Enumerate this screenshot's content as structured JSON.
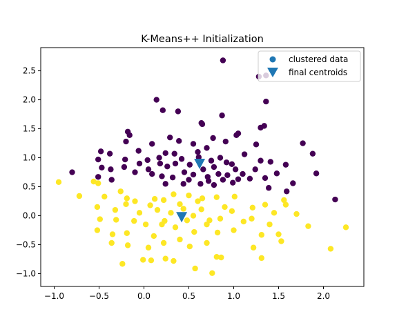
{
  "chart_data": {
    "type": "scatter",
    "title": "K-Means++ Initialization",
    "xlabel": "",
    "ylabel": "",
    "xlim": [
      -1.15,
      2.45
    ],
    "ylim": [
      -1.22,
      2.9
    ],
    "xticks": [
      -1.0,
      -0.5,
      0.0,
      0.5,
      1.0,
      1.5,
      2.0
    ],
    "xtick_labels": [
      "−1.0",
      "−0.5",
      "0.0",
      "0.5",
      "1.0",
      "1.5",
      "2.0"
    ],
    "yticks": [
      -1.0,
      -0.5,
      0.0,
      0.5,
      1.0,
      1.5,
      2.0,
      2.5
    ],
    "ytick_labels": [
      "−1.0",
      "−0.5",
      "0.0",
      "0.5",
      "1.0",
      "1.5",
      "2.0",
      "2.5"
    ],
    "grid": false,
    "legend_position": "top-right",
    "legend": [
      {
        "label": "clustered data",
        "marker": "circle",
        "color": "#1f77b4"
      },
      {
        "label": "final centroids",
        "marker": "triangle-down",
        "color": "#1f77b4"
      }
    ],
    "clusters": [
      {
        "color": "#440154",
        "points": [
          [
            0.88,
            2.68
          ],
          [
            1.28,
            2.4
          ],
          [
            1.36,
            2.42
          ],
          [
            0.14,
            2.0
          ],
          [
            1.36,
            1.97
          ],
          [
            0.21,
            1.82
          ],
          [
            0.38,
            1.8
          ],
          [
            -0.18,
            1.45
          ],
          [
            0.87,
            1.73
          ],
          [
            1.3,
            1.52
          ],
          [
            -0.16,
            1.39
          ],
          [
            0.64,
            1.6
          ],
          [
            0.65,
            1.58
          ],
          [
            -0.2,
            1.28
          ],
          [
            1.34,
            1.55
          ],
          [
            0.09,
            1.24
          ],
          [
            0.29,
            1.35
          ],
          [
            0.39,
            1.29
          ],
          [
            0.55,
            1.24
          ],
          [
            0.77,
            1.34
          ],
          [
            1.03,
            1.39
          ],
          [
            1.05,
            1.42
          ],
          [
            1.77,
            1.25
          ],
          [
            -0.48,
            1.11
          ],
          [
            -0.06,
            1.12
          ],
          [
            0.24,
            1.08
          ],
          [
            0.34,
            1.07
          ],
          [
            0.7,
            1.17
          ],
          [
            0.91,
            1.28
          ],
          [
            1.25,
            1.23
          ],
          [
            -0.8,
            0.75
          ],
          [
            -0.51,
            0.97
          ],
          [
            -0.38,
            1.07
          ],
          [
            -0.21,
            0.97
          ],
          [
            0.04,
            0.96
          ],
          [
            0.17,
            1.0
          ],
          [
            0.42,
            0.98
          ],
          [
            0.61,
            1.01
          ],
          [
            1.12,
            1.06
          ],
          [
            1.58,
            0.88
          ],
          [
            1.88,
            1.07
          ],
          [
            -0.47,
            0.83
          ],
          [
            -0.37,
            0.8
          ],
          [
            -0.22,
            0.84
          ],
          [
            0.05,
            0.8
          ],
          [
            0.26,
            0.85
          ],
          [
            0.51,
            0.88
          ],
          [
            0.78,
            0.84
          ],
          [
            0.98,
            0.89
          ],
          [
            1.24,
            0.8
          ],
          [
            1.41,
            0.93
          ],
          [
            1.92,
            0.73
          ],
          [
            -0.51,
            0.67
          ],
          [
            -0.36,
            0.62
          ],
          [
            0.09,
            0.72
          ],
          [
            0.32,
            0.66
          ],
          [
            0.55,
            0.71
          ],
          [
            0.71,
            0.67
          ],
          [
            0.93,
            0.7
          ],
          [
            1.18,
            0.64
          ],
          [
            1.48,
            0.73
          ],
          [
            0.24,
            0.55
          ],
          [
            0.44,
            0.55
          ],
          [
            0.63,
            0.55
          ],
          [
            0.78,
            0.53
          ],
          [
            0.99,
            0.57
          ],
          [
            1.39,
            0.48
          ],
          [
            1.66,
            0.56
          ],
          [
            2.13,
            0.28
          ],
          [
            1.59,
            0.42
          ],
          [
            0.6,
            1.1
          ],
          [
            0.75,
            0.95
          ],
          [
            0.85,
            1.0
          ],
          [
            0.92,
            0.92
          ],
          [
            1.02,
            0.8
          ],
          [
            0.45,
            0.75
          ],
          [
            0.35,
            0.9
          ],
          [
            0.18,
            0.9
          ],
          [
            -0.05,
            0.9
          ],
          [
            0.66,
            0.8
          ],
          [
            0.83,
            0.72
          ],
          [
            1.1,
            0.72
          ],
          [
            1.3,
            0.95
          ],
          [
            1.35,
            0.65
          ],
          [
            0.5,
            0.62
          ],
          [
            0.2,
            0.68
          ],
          [
            -0.1,
            0.75
          ],
          [
            0.72,
            0.6
          ],
          [
            0.88,
            0.62
          ],
          [
            1.05,
            0.63
          ]
        ]
      },
      {
        "color": "#fde725",
        "points": [
          [
            -0.95,
            0.58
          ],
          [
            -0.56,
            0.59
          ],
          [
            -0.51,
            0.56
          ],
          [
            -0.72,
            0.34
          ],
          [
            -0.26,
            0.42
          ],
          [
            -0.44,
            0.33
          ],
          [
            -0.19,
            0.3
          ],
          [
            -0.1,
            0.25
          ],
          [
            0.12,
            0.29
          ],
          [
            0.22,
            0.27
          ],
          [
            0.33,
            0.37
          ],
          [
            0.5,
            0.35
          ],
          [
            0.81,
            0.32
          ],
          [
            1.01,
            0.33
          ],
          [
            1.35,
            0.19
          ],
          [
            1.58,
            0.19
          ],
          [
            1.56,
            0.27
          ],
          [
            -0.52,
            0.15
          ],
          [
            -0.32,
            0.1
          ],
          [
            -0.2,
            0.2
          ],
          [
            0.07,
            0.18
          ],
          [
            0.44,
            0.12
          ],
          [
            0.64,
            0.11
          ],
          [
            0.98,
            0.08
          ],
          [
            1.21,
            0.14
          ],
          [
            1.45,
            0.05
          ],
          [
            1.7,
            0.03
          ],
          [
            -0.49,
            -0.06
          ],
          [
            -0.31,
            -0.07
          ],
          [
            -0.11,
            -0.09
          ],
          [
            0.02,
            -0.15
          ],
          [
            0.23,
            -0.09
          ],
          [
            0.48,
            -0.08
          ],
          [
            0.73,
            -0.08
          ],
          [
            1.11,
            -0.1
          ],
          [
            1.83,
            -0.18
          ],
          [
            2.25,
            -0.2
          ],
          [
            -0.52,
            -0.25
          ],
          [
            -0.35,
            -0.32
          ],
          [
            -0.19,
            -0.3
          ],
          [
            0.11,
            -0.35
          ],
          [
            0.4,
            -0.41
          ],
          [
            0.56,
            -0.28
          ],
          [
            0.82,
            -0.29
          ],
          [
            1.31,
            -0.33
          ],
          [
            1.5,
            -0.32
          ],
          [
            -0.36,
            -0.47
          ],
          [
            -0.18,
            -0.51
          ],
          [
            0.05,
            -0.55
          ],
          [
            0.22,
            -0.47
          ],
          [
            0.51,
            -0.53
          ],
          [
            0.7,
            -0.47
          ],
          [
            1.22,
            -0.55
          ],
          [
            1.53,
            -0.44
          ],
          [
            2.08,
            -0.57
          ],
          [
            -0.24,
            -0.83
          ],
          [
            -0.01,
            -0.76
          ],
          [
            0.08,
            -0.77
          ],
          [
            0.24,
            -0.74
          ],
          [
            0.33,
            -0.78
          ],
          [
            0.57,
            -0.91
          ],
          [
            0.76,
            -0.99
          ],
          [
            0.81,
            -0.71
          ],
          [
            0.86,
            -0.72
          ],
          [
            1.31,
            -0.73
          ],
          [
            0.3,
            0.05
          ],
          [
            0.6,
            0.25
          ],
          [
            0.9,
            0.15
          ],
          [
            0.15,
            0.1
          ],
          [
            0.7,
            -0.15
          ],
          [
            1.0,
            -0.25
          ],
          [
            -0.05,
            0.05
          ],
          [
            0.35,
            -0.2
          ],
          [
            0.55,
            0.0
          ],
          [
            0.85,
            -0.05
          ],
          [
            1.2,
            -0.05
          ],
          [
            0.4,
            0.2
          ],
          [
            0.2,
            -0.15
          ],
          [
            0.65,
            0.3
          ],
          [
            1.4,
            -0.15
          ]
        ]
      }
    ],
    "centroids": {
      "color": "#1f77b4",
      "points": [
        [
          0.62,
          0.9
        ],
        [
          0.42,
          -0.02
        ]
      ]
    }
  }
}
